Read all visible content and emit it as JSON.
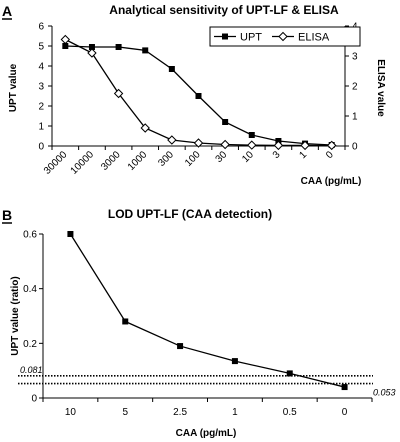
{
  "chart_data": [
    {
      "panel_label": "A",
      "type": "line",
      "title": "Analytical sensitivity of UPT-LF & ELISA",
      "xlabel": "CAA (pg/mL)",
      "ylabel": "UPT value",
      "y2label": "ELISA value",
      "categories": [
        "30000",
        "10000",
        "3000",
        "1000",
        "300",
        "100",
        "30",
        "10",
        "3",
        "1",
        "0"
      ],
      "ylim": [
        0,
        6
      ],
      "yticks": [
        "0",
        "1",
        "2",
        "3",
        "4",
        "5",
        "6"
      ],
      "y2lim": [
        0,
        4
      ],
      "y2ticks": [
        "0",
        "1",
        "2",
        "3",
        "4"
      ],
      "grid": false,
      "legend_position": "top-right",
      "series": [
        {
          "name": "UPT",
          "axis": "left",
          "marker": "square",
          "values": [
            5.0,
            4.95,
            4.95,
            4.78,
            3.85,
            2.5,
            1.2,
            0.55,
            0.25,
            0.12,
            0.05
          ]
        },
        {
          "name": "ELISA",
          "axis": "right",
          "marker": "diamond",
          "values": [
            3.55,
            3.1,
            1.75,
            0.6,
            0.2,
            0.1,
            0.05,
            0.03,
            0.02,
            0.02,
            0.02
          ]
        }
      ]
    },
    {
      "panel_label": "B",
      "type": "line",
      "title": "LOD UPT-LF (CAA detection)",
      "xlabel": "CAA (pg/mL)",
      "ylabel": "UPT value (ratio)",
      "categories": [
        "10",
        "5",
        "2.5",
        "1",
        "0.5",
        "0"
      ],
      "ylim": [
        0,
        0.6
      ],
      "yticks": [
        "0",
        "0.2",
        "0.4",
        "0.6"
      ],
      "grid": false,
      "series": [
        {
          "marker": "square",
          "values": [
            0.6,
            0.28,
            0.19,
            0.135,
            0.09,
            0.04
          ]
        }
      ],
      "threshold_lines": [
        {
          "value": 0.081,
          "label": "0.081"
        },
        {
          "value": 0.053,
          "label": "0.053"
        }
      ]
    }
  ]
}
